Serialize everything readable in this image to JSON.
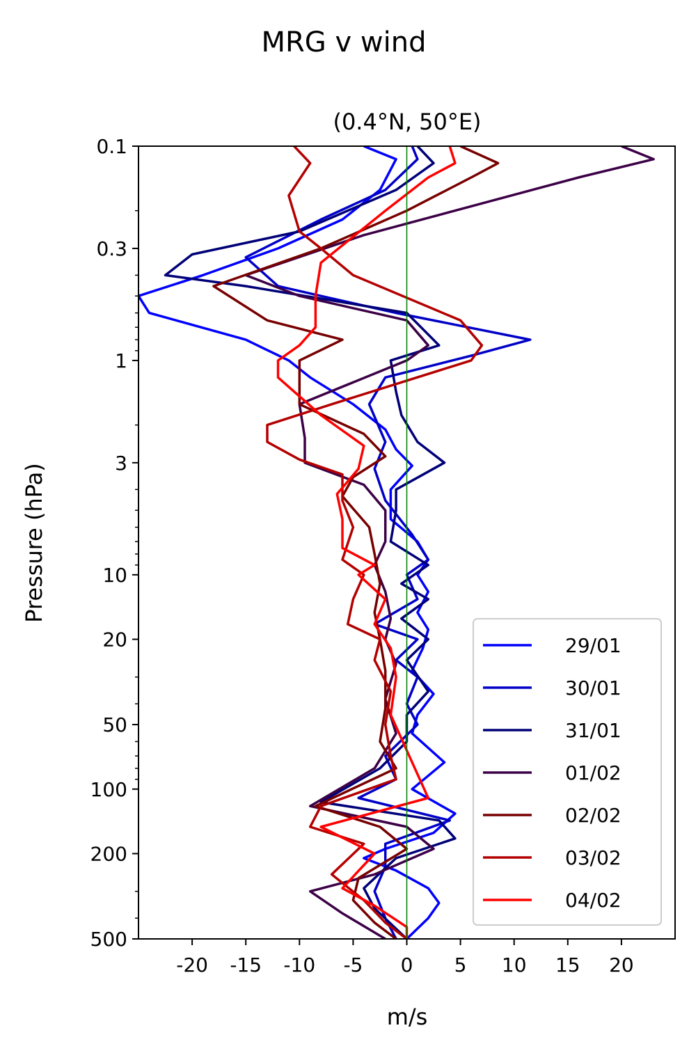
{
  "chart_data": {
    "type": "line",
    "title": "MRG v wind",
    "subtitle": "(0.4°N, 50°E)",
    "xlabel": "m/s",
    "ylabel": "Pressure (hPa)",
    "xlim": [
      -25,
      25
    ],
    "ylim": [
      500,
      0.1
    ],
    "yscale": "log",
    "xticks": [
      -20,
      -15,
      -10,
      -5,
      0,
      5,
      10,
      15,
      20
    ],
    "xtick_labels": [
      "-20",
      "-15",
      "-10",
      "-5",
      "0",
      "5",
      "10",
      "15",
      "20"
    ],
    "yticks": [
      0.1,
      0.3,
      1,
      3,
      10,
      20,
      50,
      100,
      200,
      500
    ],
    "ytick_labels": [
      "0.1",
      "0.3",
      "1",
      "3",
      "10",
      "20",
      "50",
      "100",
      "200",
      "500"
    ],
    "reference_line": {
      "x": 0,
      "color": "#008000"
    },
    "grid": false,
    "legend_position": "lower-right",
    "series": [
      {
        "name": "29/01",
        "color": "#0000ff",
        "points": [
          [
            -4,
            0.1
          ],
          [
            -1,
            0.115
          ],
          [
            -2.5,
            0.16
          ],
          [
            -6,
            0.22
          ],
          [
            -12,
            0.3
          ],
          [
            -19,
            0.4
          ],
          [
            -25,
            0.5
          ],
          [
            -24,
            0.6
          ],
          [
            -15,
            0.8
          ],
          [
            -11,
            1.0
          ],
          [
            -9,
            1.2
          ],
          [
            -5,
            1.6
          ],
          [
            -2,
            2.1
          ],
          [
            -1,
            2.6
          ],
          [
            0.5,
            3.1
          ],
          [
            -1.5,
            4.0
          ],
          [
            -1.5,
            5.5
          ],
          [
            1,
            7
          ],
          [
            2,
            8.5
          ],
          [
            1,
            10
          ],
          [
            2,
            12
          ],
          [
            1,
            15
          ],
          [
            2,
            18
          ],
          [
            1.5,
            22
          ],
          [
            0.5,
            28
          ],
          [
            2.5,
            36
          ],
          [
            1,
            45
          ],
          [
            0.5,
            55
          ],
          [
            3.5,
            75
          ],
          [
            0.5,
            100
          ],
          [
            4.5,
            130
          ],
          [
            2.5,
            160
          ],
          [
            -2,
            190
          ],
          [
            -4,
            210
          ],
          [
            -1,
            240
          ],
          [
            2,
            290
          ],
          [
            3,
            340
          ],
          [
            2,
            400
          ],
          [
            0,
            500
          ]
        ]
      },
      {
        "name": "30/01",
        "color": "#0000c8",
        "points": [
          [
            0.5,
            0.1
          ],
          [
            1,
            0.115
          ],
          [
            -2,
            0.16
          ],
          [
            -8,
            0.22
          ],
          [
            -15,
            0.33
          ],
          [
            -12,
            0.45
          ],
          [
            -8,
            0.5
          ],
          [
            -1,
            0.6
          ],
          [
            11.5,
            0.8
          ],
          [
            6,
            0.95
          ],
          [
            -2,
            1.2
          ],
          [
            -3.5,
            1.6
          ],
          [
            -2,
            2.4
          ],
          [
            -3,
            3.2
          ],
          [
            -2,
            4.5
          ],
          [
            0.5,
            6.5
          ],
          [
            2,
            8.5
          ],
          [
            0,
            10
          ],
          [
            1,
            13
          ],
          [
            -3,
            17
          ],
          [
            1,
            20
          ],
          [
            -1,
            25
          ],
          [
            1,
            30
          ],
          [
            0,
            40
          ],
          [
            1,
            50
          ],
          [
            -2,
            70
          ],
          [
            -1,
            90
          ],
          [
            -4.5,
            110
          ],
          [
            4,
            140
          ],
          [
            -2,
            180
          ],
          [
            -2,
            230
          ],
          [
            -3,
            300
          ],
          [
            -2,
            400
          ],
          [
            -1,
            500
          ]
        ]
      },
      {
        "name": "31/01",
        "color": "#000078",
        "points": [
          [
            1,
            0.1
          ],
          [
            2.5,
            0.12
          ],
          [
            -1,
            0.16
          ],
          [
            -10,
            0.25
          ],
          [
            -20,
            0.32
          ],
          [
            -22.5,
            0.4
          ],
          [
            -15,
            0.45
          ],
          [
            0,
            0.6
          ],
          [
            3,
            0.85
          ],
          [
            -1.5,
            1.0
          ],
          [
            -1,
            1.4
          ],
          [
            -0.5,
            1.8
          ],
          [
            1,
            2.4
          ],
          [
            3.5,
            3.0
          ],
          [
            -1,
            4.0
          ],
          [
            -1,
            5
          ],
          [
            -1.5,
            7
          ],
          [
            2,
            9
          ],
          [
            -0.5,
            11
          ],
          [
            2,
            13
          ],
          [
            -0.5,
            16
          ],
          [
            2,
            20
          ],
          [
            0,
            25
          ],
          [
            2,
            35
          ],
          [
            0,
            45
          ],
          [
            0,
            60
          ],
          [
            -2.5,
            80
          ],
          [
            -8,
            115
          ],
          [
            3,
            140
          ],
          [
            4.5,
            170
          ],
          [
            -1,
            210
          ],
          [
            -4,
            290
          ],
          [
            -3,
            360
          ],
          [
            0,
            500
          ]
        ]
      },
      {
        "name": "01/02",
        "color": "#3c0046",
        "points": [
          [
            20,
            0.1
          ],
          [
            23,
            0.115
          ],
          [
            16,
            0.14
          ],
          [
            -4,
            0.26
          ],
          [
            -15,
            0.4
          ],
          [
            -10,
            0.5
          ],
          [
            0,
            0.65
          ],
          [
            2,
            0.85
          ],
          [
            0,
            1.0
          ],
          [
            -10,
            1.6
          ],
          [
            -9.5,
            2.3
          ],
          [
            -9.5,
            3.0
          ],
          [
            -4,
            3.8
          ],
          [
            -2,
            5.0
          ],
          [
            -2,
            7
          ],
          [
            -3,
            9
          ],
          [
            -2,
            12
          ],
          [
            -1.5,
            16
          ],
          [
            -2,
            20
          ],
          [
            -1,
            26
          ],
          [
            -2,
            38
          ],
          [
            -1,
            55
          ],
          [
            -3,
            80
          ],
          [
            -9,
            120
          ],
          [
            0,
            150
          ],
          [
            2.5,
            190
          ],
          [
            -3,
            250
          ],
          [
            -9,
            300
          ],
          [
            -6,
            380
          ],
          [
            -2,
            500
          ]
        ]
      },
      {
        "name": "02/02",
        "color": "#780000",
        "points": [
          [
            5,
            0.1
          ],
          [
            8.5,
            0.12
          ],
          [
            6,
            0.14
          ],
          [
            0,
            0.2
          ],
          [
            -8,
            0.3
          ],
          [
            -18,
            0.45
          ],
          [
            -13,
            0.65
          ],
          [
            -6,
            0.8
          ],
          [
            -10,
            1.0
          ],
          [
            -10,
            1.6
          ],
          [
            -4,
            2.2
          ],
          [
            -2,
            2.8
          ],
          [
            -5,
            3.5
          ],
          [
            -6,
            4.3
          ],
          [
            -3.5,
            6
          ],
          [
            -3,
            8
          ],
          [
            -2.5,
            11
          ],
          [
            -3,
            15
          ],
          [
            -2.5,
            20
          ],
          [
            -2,
            28
          ],
          [
            -2,
            42
          ],
          [
            -2.5,
            60
          ],
          [
            -1,
            80
          ],
          [
            -8.5,
            120
          ],
          [
            -2.5,
            150
          ],
          [
            0,
            190
          ],
          [
            -4.5,
            260
          ],
          [
            -5,
            330
          ],
          [
            -3,
            420
          ],
          [
            -1,
            500
          ]
        ]
      },
      {
        "name": "03/02",
        "color": "#b40000",
        "points": [
          [
            -10.5,
            0.1
          ],
          [
            -9,
            0.12
          ],
          [
            -11,
            0.17
          ],
          [
            -10,
            0.25
          ],
          [
            -8,
            0.3
          ],
          [
            -5,
            0.4
          ],
          [
            5,
            0.65
          ],
          [
            7,
            0.85
          ],
          [
            6,
            1.0
          ],
          [
            -7,
            1.6
          ],
          [
            -13,
            2.0
          ],
          [
            -13,
            2.4
          ],
          [
            -10,
            2.9
          ],
          [
            -6,
            3.4
          ],
          [
            -6,
            4.5
          ],
          [
            -5,
            6
          ],
          [
            -6,
            8.5
          ],
          [
            -4,
            10
          ],
          [
            -5,
            13
          ],
          [
            -5.5,
            17
          ],
          [
            -2.5,
            20
          ],
          [
            -3,
            25
          ],
          [
            -1.5,
            35
          ],
          [
            -2,
            50
          ],
          [
            -1.5,
            70
          ],
          [
            -1,
            90
          ],
          [
            -8,
            120
          ],
          [
            -9,
            150
          ],
          [
            -4,
            180
          ],
          [
            -7,
            250
          ],
          [
            -4,
            330
          ],
          [
            -2,
            420
          ],
          [
            0,
            500
          ]
        ]
      },
      {
        "name": "04/02",
        "color": "#ff0000",
        "points": [
          [
            4,
            0.1
          ],
          [
            4.5,
            0.12
          ],
          [
            2,
            0.14
          ],
          [
            -2,
            0.2
          ],
          [
            -8,
            0.35
          ],
          [
            -8.5,
            0.5
          ],
          [
            -8.5,
            0.7
          ],
          [
            -10,
            0.85
          ],
          [
            -12,
            1.0
          ],
          [
            -12,
            1.2
          ],
          [
            -8,
            1.8
          ],
          [
            -4,
            2.5
          ],
          [
            -4.5,
            3.2
          ],
          [
            -6.5,
            4.2
          ],
          [
            -6,
            5.5
          ],
          [
            -6,
            7.5
          ],
          [
            -3,
            9
          ],
          [
            -4.5,
            10
          ],
          [
            -2,
            13
          ],
          [
            -3,
            17
          ],
          [
            -1.5,
            22
          ],
          [
            -1,
            30
          ],
          [
            -1.5,
            45
          ],
          [
            0.5,
            75
          ],
          [
            2,
            110
          ],
          [
            -8,
            150
          ],
          [
            -3,
            200
          ],
          [
            -6,
            290
          ],
          [
            -3,
            350
          ],
          [
            0,
            440
          ],
          [
            0,
            500
          ]
        ]
      }
    ]
  }
}
